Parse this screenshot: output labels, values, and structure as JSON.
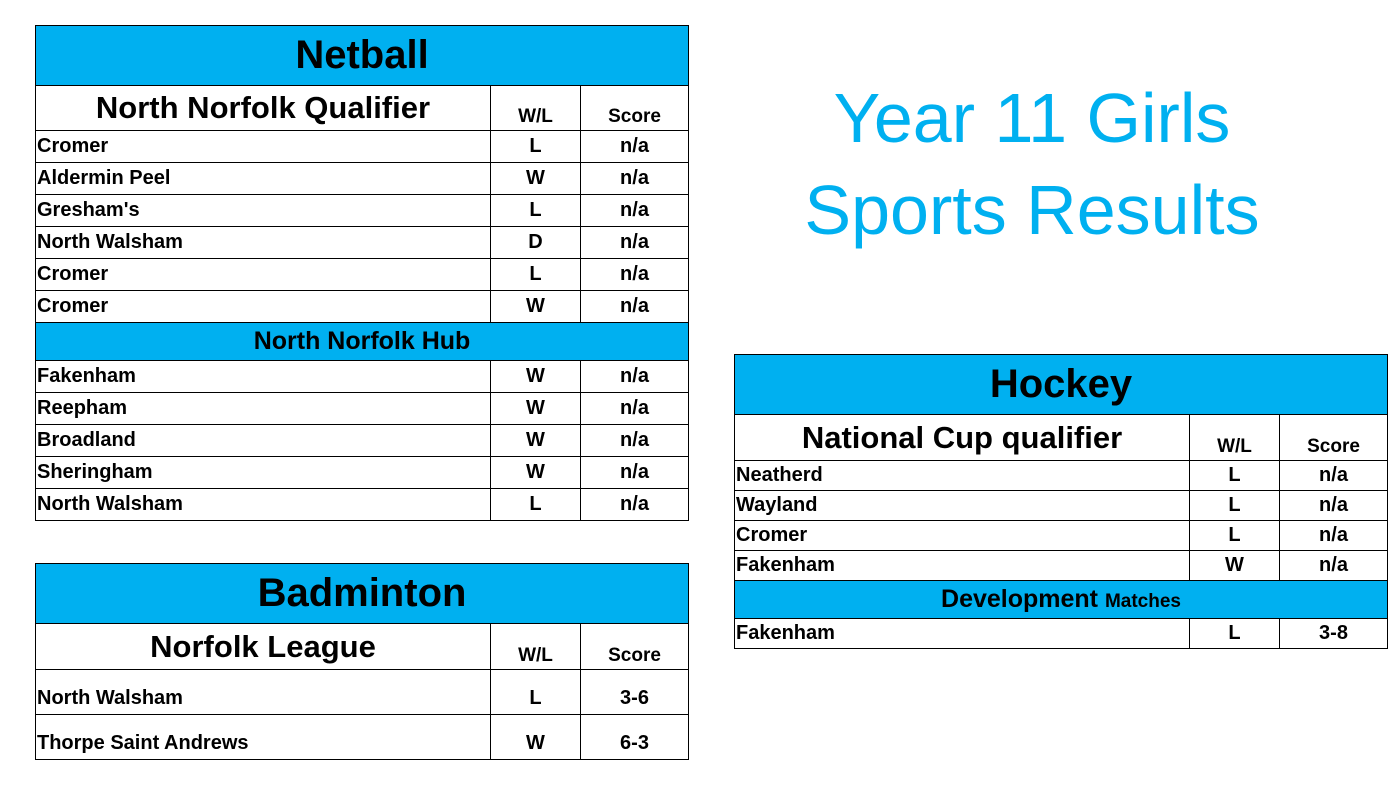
{
  "page_title": {
    "line1": "Year 11 Girls",
    "line2": "Sports Results"
  },
  "columns": {
    "wl": "W/L",
    "score": "Score"
  },
  "netball": {
    "title": "Netball",
    "section1": "North Norfolk Qualifier",
    "rows1": [
      {
        "team": "Cromer",
        "wl": "L",
        "score": "n/a"
      },
      {
        "team": "Aldermin Peel",
        "wl": "W",
        "score": "n/a"
      },
      {
        "team": "Gresham's",
        "wl": "L",
        "score": "n/a"
      },
      {
        "team": "North Walsham",
        "wl": "D",
        "score": "n/a"
      },
      {
        "team": "Cromer",
        "wl": "L",
        "score": "n/a"
      },
      {
        "team": "Cromer",
        "wl": "W",
        "score": "n/a"
      }
    ],
    "section2": "North Norfolk Hub",
    "rows2": [
      {
        "team": "Fakenham",
        "wl": "W",
        "score": "n/a"
      },
      {
        "team": "Reepham",
        "wl": "W",
        "score": "n/a"
      },
      {
        "team": "Broadland",
        "wl": "W",
        "score": "n/a"
      },
      {
        "team": "Sheringham",
        "wl": "W",
        "score": "n/a"
      },
      {
        "team": "North Walsham",
        "wl": "L",
        "score": "n/a"
      }
    ]
  },
  "badminton": {
    "title": "Badminton",
    "section1": "Norfolk League",
    "rows1": [
      {
        "team": "North Walsham",
        "wl": "L",
        "score": "3-6"
      },
      {
        "team": "Thorpe Saint Andrews",
        "wl": "W",
        "score": "6-3"
      }
    ]
  },
  "hockey": {
    "title": "Hockey",
    "section1": "National Cup qualifier",
    "rows1": [
      {
        "team": "Neatherd",
        "wl": "L",
        "score": "n/a"
      },
      {
        "team": "Wayland",
        "wl": "L",
        "score": "n/a"
      },
      {
        "team": "Cromer",
        "wl": "L",
        "score": "n/a"
      },
      {
        "team": "Fakenham",
        "wl": "W",
        "score": "n/a"
      }
    ],
    "section2_main": "Development",
    "section2_small": "Matches",
    "rows2": [
      {
        "team": "Fakenham",
        "wl": "L",
        "score": "3-8"
      }
    ]
  }
}
